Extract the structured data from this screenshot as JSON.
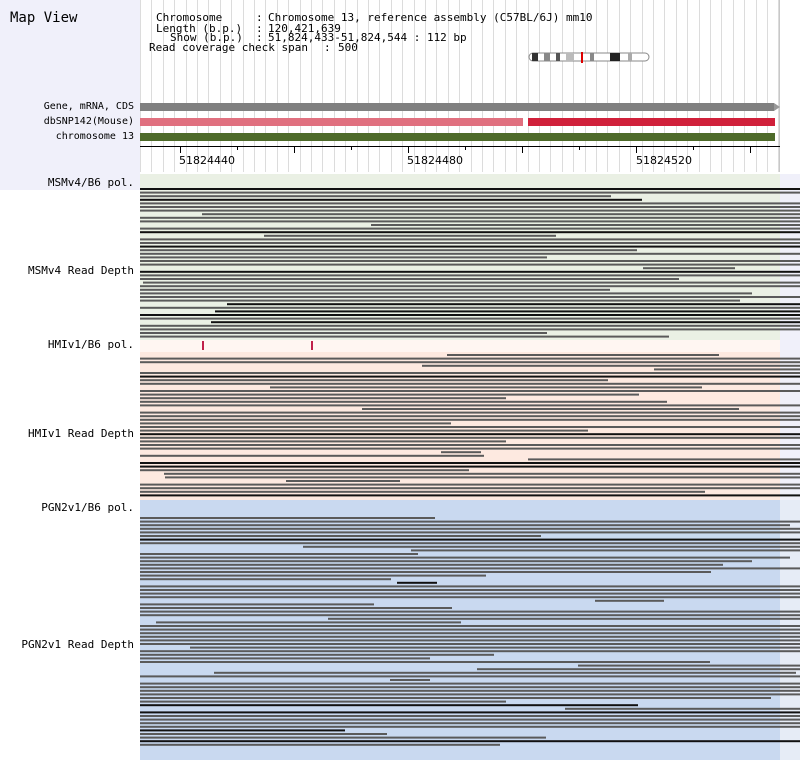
{
  "title": "Map View",
  "info": {
    "chromosome_label": "Chromosome",
    "chromosome_value": "Chromosome 13, reference assembly (C57BL/6J) mm10",
    "length_label": "Length (b.p.)",
    "length_value": "120,421,639",
    "show_label": "Show (b.p.)",
    "show_value": "51,824,433-51,824,544 : 112 bp",
    "coverage_label": "Read coverage check span",
    "coverage_value": "500"
  },
  "tracks": {
    "gene_label": "Gene, mRNA, CDS",
    "snp_label": "dbSNP142(Mouse)",
    "chrom_label": "chromosome 13"
  },
  "colors": {
    "sidebar_bg": "#f0f0fa",
    "gene": "#808080",
    "snp_light": "#e0707f",
    "snp_dark": "#d0203a",
    "chromosome": "#4e6b2a",
    "msm_bg": "#eaf0e4",
    "hmi_bg": "#fde9e0",
    "pgn_bg": "#c9d9f0",
    "read": "#5a5a5a"
  },
  "ruler": {
    "tick_labels": [
      "51824440",
      "51824480",
      "51824520"
    ]
  },
  "samples": [
    {
      "pol_label": "MSMv4/B6 pol.",
      "depth_label": "MSMv4 Read Depth",
      "read_count": 42
    },
    {
      "pol_label": "HMIv1/B6 pol.",
      "depth_label": "HMIv1 Read Depth",
      "read_count": 40
    },
    {
      "pol_label": "PGN2v1/B6 pol.",
      "depth_label": "PGN2v1 Read Depth",
      "read_count": 64
    }
  ]
}
